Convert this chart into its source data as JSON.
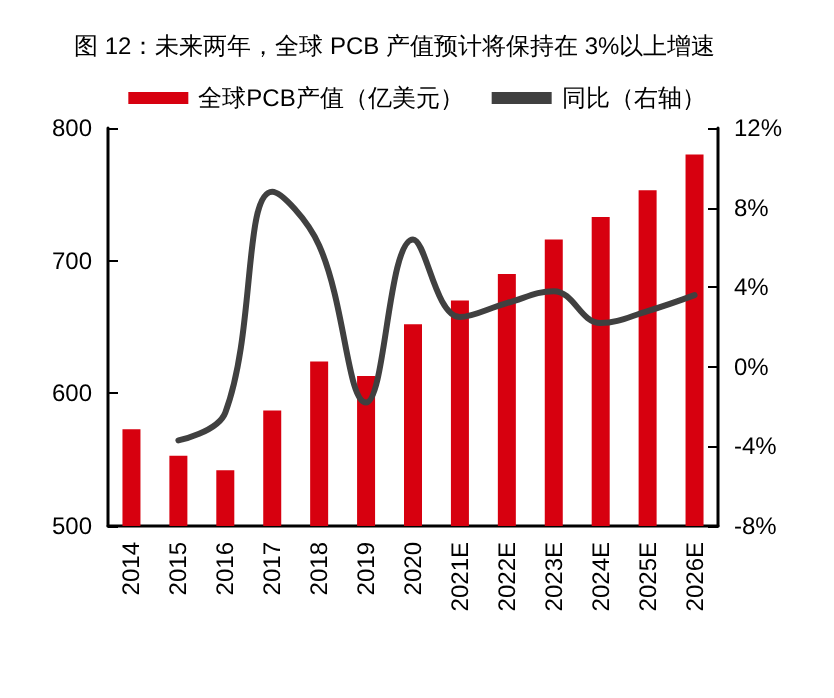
{
  "chart_data": {
    "type": "bar",
    "title": "图 12：未来两年，全球 PCB 产值预计将保持在 3%以上增速",
    "categories": [
      "2014",
      "2015",
      "2016",
      "2017",
      "2018",
      "2019",
      "2020",
      "2021E",
      "2022E",
      "2023E",
      "2024E",
      "2025E",
      "2026E"
    ],
    "series": [
      {
        "name": "全球PCB产值（亿美元）",
        "color": "#d7000f",
        "values": [
          573,
          553,
          542,
          587,
          624,
          613,
          652,
          670,
          690,
          716,
          733,
          753,
          780
        ]
      },
      {
        "name": "同比（右轴）",
        "type": "line",
        "axis": "y2",
        "color": "#404040",
        "values": [
          null,
          -3.7,
          -2.3,
          8.8,
          6.1,
          -1.8,
          6.4,
          2.5,
          3.2,
          3.8,
          2.2,
          2.8,
          3.6
        ]
      }
    ],
    "ylim": [
      500,
      800
    ],
    "yticks": [
      500,
      600,
      700,
      800
    ],
    "y2lim": [
      -8,
      12
    ],
    "y2ticks": [
      {
        "value": -8,
        "label": "-8%"
      },
      {
        "value": -4,
        "label": "-4%"
      },
      {
        "value": 0,
        "label": "0%"
      },
      {
        "value": 4,
        "label": "4%"
      },
      {
        "value": 8,
        "label": "8%"
      },
      {
        "value": 12,
        "label": "12%"
      }
    ],
    "legend": "top",
    "grid": false,
    "marker": "none",
    "line_style": "solid"
  }
}
